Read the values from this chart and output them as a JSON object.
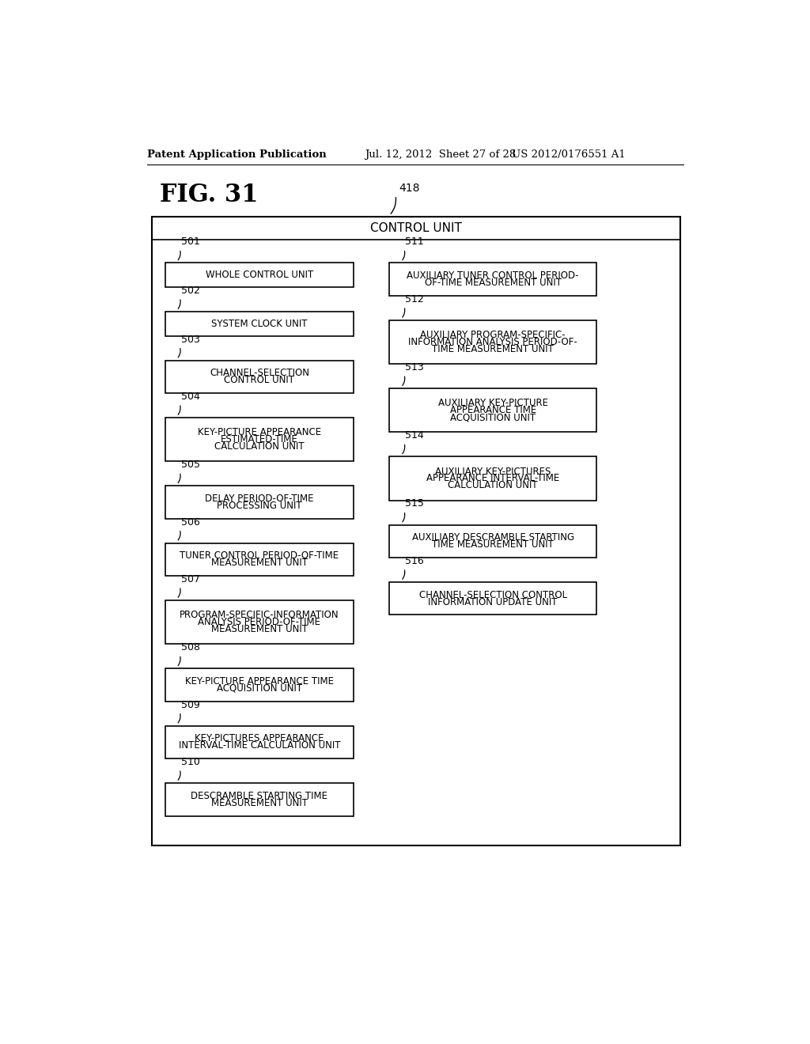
{
  "bg_color": "#ffffff",
  "header_text_left": "Patent Application Publication",
  "header_text_mid": "Jul. 12, 2012  Sheet 27 of 28",
  "header_text_right": "US 2012/0176551 A1",
  "fig_label": "FIG. 31",
  "outer_box_label": "CONTROL UNIT",
  "outer_label_ref": "418",
  "left_boxes": [
    {
      "ref": "501",
      "lines": [
        "WHOLE CONTROL UNIT"
      ]
    },
    {
      "ref": "502",
      "lines": [
        "SYSTEM CLOCK UNIT"
      ]
    },
    {
      "ref": "503",
      "lines": [
        "CHANNEL-SELECTION",
        "CONTROL UNIT"
      ]
    },
    {
      "ref": "504",
      "lines": [
        "KEY-PICTURE APPEARANCE",
        "ESTIMATED-TIME",
        "CALCULATION UNIT"
      ]
    },
    {
      "ref": "505",
      "lines": [
        "DELAY PERIOD-OF-TIME",
        "PROCESSING UNIT"
      ]
    },
    {
      "ref": "506",
      "lines": [
        "TUNER CONTROL PERIOD-OF-TIME",
        "MEASUREMENT UNIT"
      ]
    },
    {
      "ref": "507",
      "lines": [
        "PROGRAM-SPECIFIC-INFORMATION",
        "ANALYSIS PERIOD-OF-TIME",
        "MEASUREMENT UNIT"
      ]
    },
    {
      "ref": "508",
      "lines": [
        "KEY-PICTURE APPEARANCE TIME",
        "ACQUISITION UNIT"
      ]
    },
    {
      "ref": "509",
      "lines": [
        "KEY-PICTURES APPEARANCE",
        "INTERVAL-TIME CALCULATION UNIT"
      ]
    },
    {
      "ref": "510",
      "lines": [
        "DESCRAMBLE STARTING TIME",
        "MEASUREMENT UNIT"
      ]
    }
  ],
  "right_boxes": [
    {
      "ref": "511",
      "lines": [
        "AUXILIARY TUNER CONTROL PERIOD-",
        "OF-TIME MEASUREMENT UNIT"
      ]
    },
    {
      "ref": "512",
      "lines": [
        "AUXILIARY PROGRAM-SPECIFIC-",
        "INFORMATION ANALYSIS PERIOD-OF-",
        "TIME MEASUREMENT UNIT"
      ]
    },
    {
      "ref": "513",
      "lines": [
        "AUXILIARY KEY-PICTURE",
        "APPEARANCE TIME",
        "ACQUISITION UNIT"
      ]
    },
    {
      "ref": "514",
      "lines": [
        "AUXILIARY KEY-PICTURES",
        "APPEARANCE INTERVAL-TIME",
        "CALCULATION UNIT"
      ]
    },
    {
      "ref": "515",
      "lines": [
        "AUXILIARY DESCRAMBLE STARTING",
        "TIME MEASUREMENT UNIT"
      ]
    },
    {
      "ref": "516",
      "lines": [
        "CHANNEL-SELECTION CONTROL",
        "INFORMATION UPDATE UNIT"
      ]
    }
  ]
}
